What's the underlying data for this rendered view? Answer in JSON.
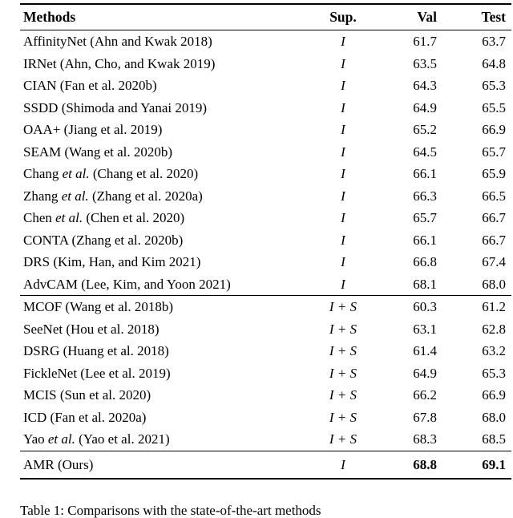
{
  "header": {
    "methods": "Methods",
    "sup": "Sup.",
    "val": "Val",
    "test": "Test"
  },
  "rows": [
    {
      "m1": "AffinityNet (Ahn and Kwak 2018)",
      "sup": "I",
      "val": "61.7",
      "test": "63.7"
    },
    {
      "m1": "IRNet (Ahn, Cho, and Kwak 2019)",
      "sup": "I",
      "val": "63.5",
      "test": "64.8"
    },
    {
      "m1": "CIAN (Fan et al. 2020b)",
      "sup": "I",
      "val": "64.3",
      "test": "65.3"
    },
    {
      "m1": "SSDD (Shimoda and Yanai 2019)",
      "sup": "I",
      "val": "64.9",
      "test": "65.5"
    },
    {
      "m1": "OAA+ (Jiang et al. 2019)",
      "sup": "I",
      "val": "65.2",
      "test": "66.9"
    },
    {
      "m1": "SEAM (Wang et al. 2020b)",
      "sup": "I",
      "val": "64.5",
      "test": "65.7"
    },
    {
      "m1": "Chang ",
      "m2": "et al.",
      "m3": " (Chang et al. 2020)",
      "sup": "I",
      "val": "66.1",
      "test": "65.9"
    },
    {
      "m1": "Zhang ",
      "m2": "et al.",
      "m3": " (Zhang et al. 2020a)",
      "sup": "I",
      "val": "66.3",
      "test": "66.5"
    },
    {
      "m1": "Chen ",
      "m2": "et al.",
      "m3": " (Chen et al. 2020)",
      "sup": "I",
      "val": "65.7",
      "test": "66.7"
    },
    {
      "m1": "CONTA (Zhang et al. 2020b)",
      "sup": "I",
      "val": "66.1",
      "test": "66.7"
    },
    {
      "m1": "DRS (Kim, Han, and Kim 2021)",
      "sup": "I",
      "val": "66.8",
      "test": "67.4"
    },
    {
      "m1": "AdvCAM (Lee, Kim, and Yoon 2021)",
      "sup": "I",
      "val": "68.1",
      "test": "68.0"
    },
    {
      "m1": "MCOF (Wang et al. 2018b)",
      "sup": "I + S",
      "val": "60.3",
      "test": "61.2"
    },
    {
      "m1": "SeeNet (Hou et al. 2018)",
      "sup": "I + S",
      "val": "63.1",
      "test": "62.8"
    },
    {
      "m1": "DSRG (Huang et al. 2018)",
      "sup": "I + S",
      "val": "61.4",
      "test": "63.2"
    },
    {
      "m1": "FickleNet (Lee et al. 2019)",
      "sup": "I + S",
      "val": "64.9",
      "test": "65.3"
    },
    {
      "m1": "MCIS (Sun et al. 2020)",
      "sup": "I + S",
      "val": "66.2",
      "test": "66.9"
    },
    {
      "m1": "ICD (Fan et al. 2020a)",
      "sup": "I + S",
      "val": "67.8",
      "test": "68.0"
    },
    {
      "m1": "Yao ",
      "m2": "et al.",
      "m3": " (Yao et al. 2021)",
      "sup": "I + S",
      "val": "68.3",
      "test": "68.5"
    }
  ],
  "final_row": {
    "m1": "AMR (Ours)",
    "sup": "I",
    "val": "68.8",
    "test": "69.1"
  },
  "caption": "Table 1: Comparisons with the state-of-the-art methods"
}
